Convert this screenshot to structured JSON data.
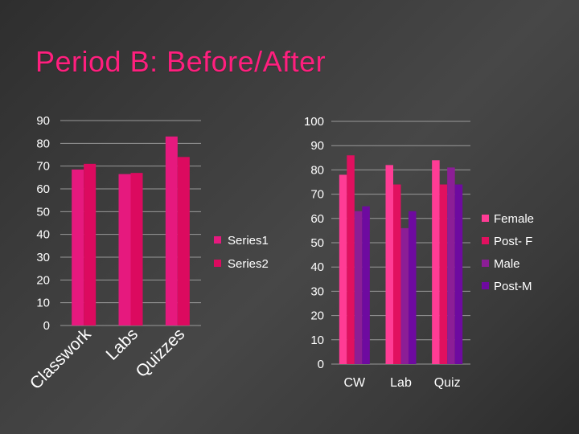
{
  "slide": {
    "title": "Period B: Before/After"
  },
  "colors": {
    "title": "#ff1f7e",
    "series1": "#e6197e",
    "series2": "#dc0a5f",
    "female": "#ff3c95",
    "post_f": "#e1105f",
    "male": "#8c1e96",
    "post_m": "#6e0aa0",
    "gridline": "#999999",
    "text": "#ffffff"
  },
  "chart_data": [
    {
      "type": "bar",
      "categories": [
        "Classwork",
        "Labs",
        "Quizzes"
      ],
      "series": [
        {
          "name": "Series1",
          "values": [
            68.5,
            66.5,
            83
          ]
        },
        {
          "name": "Series2",
          "values": [
            71,
            67,
            74
          ]
        }
      ],
      "ylim": [
        0,
        90
      ],
      "yticks": [
        0,
        10,
        20,
        30,
        40,
        50,
        60,
        70,
        80,
        90
      ],
      "grid": true,
      "legend": "right"
    },
    {
      "type": "bar",
      "categories": [
        "CW",
        "Lab",
        "Quiz"
      ],
      "series": [
        {
          "name": "Female",
          "values": [
            78,
            82,
            84
          ]
        },
        {
          "name": "Post- F",
          "values": [
            86,
            74,
            74
          ]
        },
        {
          "name": "Male",
          "values": [
            63,
            56,
            81
          ]
        },
        {
          "name": "Post-M",
          "values": [
            65,
            63,
            74
          ]
        }
      ],
      "ylim": [
        0,
        100
      ],
      "yticks": [
        0,
        10,
        20,
        30,
        40,
        50,
        60,
        70,
        80,
        90,
        100
      ],
      "grid": true,
      "legend": "right"
    }
  ]
}
